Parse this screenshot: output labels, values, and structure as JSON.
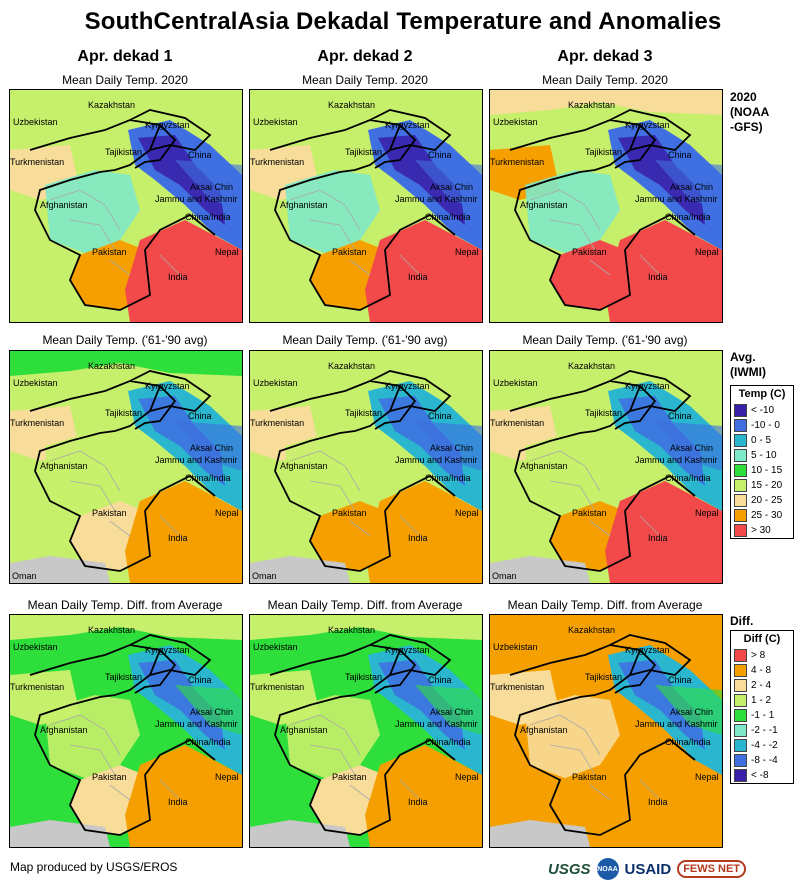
{
  "title": "SouthCentralAsia Dekadal Temperature and Anomalies",
  "columns": [
    "Apr. dekad 1",
    "Apr. dekad 2",
    "Apr. dekad 3"
  ],
  "rows": [
    {
      "subtitle": "Mean Daily Temp. 2020",
      "side_label": "2020\n(NOAA\n-GFS)"
    },
    {
      "subtitle": "Mean Daily Temp. ('61-'90 avg)",
      "side_label": "Avg.\n(IWMI)"
    },
    {
      "subtitle": "Mean Daily Temp. Diff. from Average",
      "side_label": "Diff."
    }
  ],
  "place_labels": {
    "kazakhstan": "Kazakhstan",
    "uzbekistan": "Uzbekistan",
    "kyrgyzstan": "Kyrgyzstan",
    "tajikistan": "Tajikistan",
    "turkmenistan": "Turkmenistan",
    "china": "China",
    "afghanistan": "Afghanistan",
    "aksai_chin": "Aksai Chin",
    "jammu_kashmir": "Jammu and Kashmir",
    "china_india": "China/India",
    "pakistan": "Pakistan",
    "india": "India",
    "nepal": "Nepal",
    "oman": "Oman"
  },
  "temp_legend": {
    "title": "Temp (C)",
    "items": [
      {
        "label": "< -10",
        "color": "#3a1fa8"
      },
      {
        "label": "-10 - 0",
        "color": "#3f6fe0"
      },
      {
        "label": "0 - 5",
        "color": "#2ab6cf"
      },
      {
        "label": "5 - 10",
        "color": "#7fe8c8"
      },
      {
        "label": "10 - 15",
        "color": "#2ede3a"
      },
      {
        "label": "15 - 20",
        "color": "#c6ef6c"
      },
      {
        "label": "20 - 25",
        "color": "#f7dc9a"
      },
      {
        "label": "25 - 30",
        "color": "#f5a000"
      },
      {
        "label": "> 30",
        "color": "#f24a4a"
      }
    ]
  },
  "diff_legend": {
    "title": "Diff (C)",
    "items": [
      {
        "label": "> 8",
        "color": "#f24a4a"
      },
      {
        "label": "4 - 8",
        "color": "#f5a000"
      },
      {
        "label": "2 - 4",
        "color": "#f7dc9a"
      },
      {
        "label": "1 - 2",
        "color": "#c6ef6c"
      },
      {
        "label": "-1 - 1",
        "color": "#2ede3a"
      },
      {
        "label": "-2 - -1",
        "color": "#7fe8c8"
      },
      {
        "label": "-4 - -2",
        "color": "#2ab6cf"
      },
      {
        "label": "-8 - -4",
        "color": "#3f6fe0"
      },
      {
        "label": "< -8",
        "color": "#3a1fa8"
      }
    ]
  },
  "footer": "Map produced by USGS/EROS",
  "logos": {
    "usgs": "USGS",
    "noaa": "NOAA",
    "usaid": "USAID",
    "fews": "FEWS NET"
  }
}
